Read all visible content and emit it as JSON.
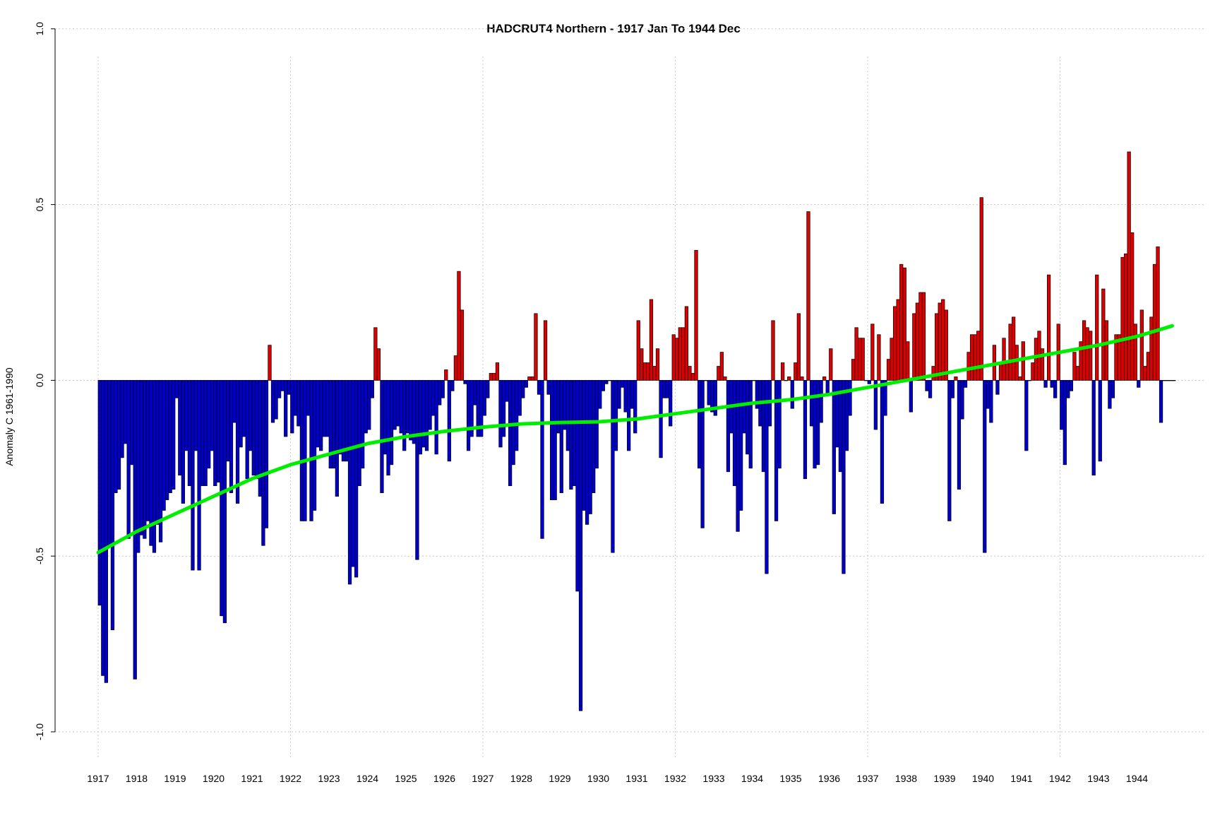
{
  "chart_data": {
    "type": "bar",
    "title": "HADCRUT4 Northern - 1917 Jan To 1944 Dec",
    "xlabel": "",
    "ylabel": "Anomaly C 1961-1990",
    "ylim": [
      -1.0,
      1.0
    ],
    "yticks": [
      "-1.0",
      "-0.5",
      "0.0",
      "0.5",
      "1.0"
    ],
    "xticks": [
      "1917",
      "1918",
      "1919",
      "1920",
      "1921",
      "1922",
      "1923",
      "1924",
      "1925",
      "1926",
      "1927",
      "1928",
      "1929",
      "1930",
      "1931",
      "1932",
      "1933",
      "1934",
      "1935",
      "1936",
      "1937",
      "1938",
      "1939",
      "1940",
      "1941",
      "1942",
      "1943",
      "1944"
    ],
    "grid": true,
    "x_start": "1917 Jan",
    "x_end": "1944 Dec",
    "colors": {
      "positive": "#dd0000",
      "negative": "#0000cc",
      "trend": "#00ee00",
      "bar_border": "#000000"
    },
    "series": [
      {
        "type": "bar",
        "monthly_anomalies": {
          "1917": [
            -0.64,
            -0.84,
            -0.86,
            -0.47,
            -0.71,
            -0.32,
            -0.31,
            -0.22,
            -0.18,
            -0.45,
            -0.24,
            -0.85
          ],
          "1918": [
            -0.49,
            -0.44,
            -0.45,
            -0.4,
            -0.47,
            -0.49,
            -0.41,
            -0.46,
            -0.37,
            -0.34,
            -0.32,
            -0.31
          ],
          "1919": [
            -0.05,
            -0.27,
            -0.35,
            -0.2,
            -0.3,
            -0.54,
            -0.2,
            -0.54,
            -0.3,
            -0.3,
            -0.25,
            -0.2
          ],
          "1920": [
            -0.3,
            -0.29,
            -0.67,
            -0.69,
            -0.23,
            -0.32,
            -0.12,
            -0.35,
            -0.19,
            -0.16,
            -0.28,
            -0.2
          ],
          "1921": [
            -0.27,
            -0.28,
            -0.33,
            -0.47,
            -0.42,
            0.1,
            -0.12,
            -0.11,
            -0.05,
            -0.03,
            -0.16,
            -0.04
          ],
          "1922": [
            -0.15,
            -0.1,
            -0.13,
            -0.4,
            -0.4,
            -0.1,
            -0.4,
            -0.37,
            -0.19,
            -0.2,
            -0.16,
            -0.16
          ],
          "1923": [
            -0.25,
            -0.25,
            -0.33,
            -0.21,
            -0.23,
            -0.23,
            -0.58,
            -0.53,
            -0.56,
            -0.3,
            -0.25,
            -0.15
          ],
          "1924": [
            -0.14,
            -0.05,
            0.15,
            0.09,
            -0.32,
            -0.21,
            -0.27,
            -0.24,
            -0.14,
            -0.13,
            -0.15,
            -0.2
          ],
          "1925": [
            -0.15,
            -0.17,
            -0.18,
            -0.51,
            -0.21,
            -0.19,
            -0.2,
            -0.14,
            -0.1,
            -0.21,
            -0.07,
            -0.05
          ],
          "1926": [
            0.03,
            -0.23,
            -0.03,
            0.07,
            0.31,
            0.2,
            -0.01,
            -0.2,
            -0.16,
            -0.07,
            -0.16,
            -0.16
          ],
          "1927": [
            -0.1,
            -0.05,
            0.02,
            0.02,
            0.05,
            -0.19,
            -0.16,
            -0.06,
            -0.3,
            -0.24,
            -0.2,
            -0.1
          ],
          "1928": [
            -0.05,
            -0.02,
            0.01,
            0.01,
            0.19,
            -0.04,
            -0.45,
            0.17,
            -0.04,
            -0.34,
            -0.34,
            -0.15
          ],
          "1929": [
            -0.32,
            -0.14,
            -0.2,
            -0.31,
            -0.3,
            -0.6,
            -0.94,
            -0.37,
            -0.41,
            -0.38,
            -0.32,
            -0.25
          ],
          "1930": [
            -0.08,
            -0.03,
            -0.01,
            0.0,
            -0.49,
            -0.2,
            -0.08,
            -0.02,
            -0.09,
            -0.2,
            -0.08,
            -0.15
          ],
          "1931": [
            0.17,
            0.09,
            0.05,
            0.05,
            0.23,
            0.04,
            0.09,
            -0.22,
            -0.05,
            -0.05,
            -0.13,
            0.13
          ],
          "1932": [
            0.12,
            0.15,
            0.15,
            0.21,
            0.04,
            0.02,
            0.37,
            -0.25,
            -0.42,
            0.0,
            -0.07,
            -0.09
          ],
          "1933": [
            -0.1,
            0.04,
            0.08,
            0.01,
            -0.26,
            -0.15,
            -0.3,
            -0.43,
            -0.37,
            -0.15,
            -0.21,
            -0.25
          ],
          "1934": [
            0.0,
            -0.08,
            -0.13,
            -0.26,
            -0.55,
            -0.13,
            0.17,
            -0.4,
            -0.25,
            0.05,
            0.0,
            0.01
          ],
          "1935": [
            -0.08,
            0.05,
            0.19,
            0.01,
            -0.28,
            0.48,
            -0.13,
            -0.25,
            -0.24,
            -0.12,
            0.01,
            -0.04
          ],
          "1936": [
            0.09,
            -0.38,
            -0.19,
            -0.26,
            -0.55,
            -0.2,
            -0.1,
            0.06,
            0.15,
            0.12,
            0.12,
            0.0
          ],
          "1937": [
            -0.01,
            0.16,
            -0.14,
            0.13,
            -0.35,
            -0.1,
            0.06,
            0.12,
            0.21,
            0.23,
            0.33,
            0.32
          ],
          "1938": [
            0.11,
            -0.09,
            0.19,
            0.22,
            0.25,
            0.25,
            -0.03,
            -0.05,
            0.04,
            0.19,
            0.22,
            0.23
          ],
          "1939": [
            0.2,
            -0.4,
            -0.05,
            0.01,
            -0.31,
            -0.11,
            -0.02,
            0.08,
            0.13,
            0.13,
            0.14,
            0.52
          ],
          "1940": [
            -0.49,
            -0.08,
            -0.12,
            0.1,
            -0.04,
            0.05,
            0.12,
            0.05,
            0.16,
            0.18,
            0.1,
            0.01
          ],
          "1941": [
            0.11,
            -0.2,
            0.0,
            0.05,
            0.12,
            0.14,
            0.09,
            -0.02,
            0.3,
            -0.02,
            -0.05,
            0.16
          ],
          "1942": [
            -0.14,
            -0.24,
            -0.05,
            -0.03,
            0.08,
            0.04,
            0.11,
            0.17,
            0.15,
            0.14,
            -0.27,
            0.3
          ],
          "1943": [
            -0.23,
            0.26,
            0.17,
            -0.08,
            -0.05,
            0.13,
            0.13,
            0.35,
            0.36,
            0.65,
            0.42,
            0.16
          ],
          "1944": [
            -0.02,
            0.2,
            0.04,
            0.08,
            0.18,
            0.33,
            0.38,
            -0.12,
            0.0,
            0.0,
            0.0,
            0.0
          ]
        }
      },
      {
        "type": "line",
        "x": [
          "1917 Jan",
          "1918 Jan",
          "1919 Jan",
          "1920 Jan",
          "1921 Jan",
          "1922 Jan",
          "1923 Jan",
          "1924 Jan",
          "1925 Jan",
          "1926 Jan",
          "1927 Jan",
          "1928 Jan",
          "1929 Jan",
          "1930 Jan",
          "1931 Jan",
          "1932 Jan",
          "1933 Jan",
          "1934 Jan",
          "1935 Jan",
          "1936 Jan",
          "1937 Jan",
          "1938 Jan",
          "1939 Jan",
          "1940 Jan",
          "1941 Jan",
          "1942 Jan",
          "1943 Jan",
          "1944 Jan",
          "1944 Dec"
        ],
        "values": [
          -0.49,
          -0.43,
          -0.38,
          -0.33,
          -0.28,
          -0.24,
          -0.21,
          -0.18,
          -0.16,
          -0.145,
          -0.133,
          -0.124,
          -0.12,
          -0.118,
          -0.11,
          -0.095,
          -0.08,
          -0.065,
          -0.055,
          -0.04,
          -0.02,
          0.0,
          0.02,
          0.04,
          0.06,
          0.08,
          0.1,
          0.125,
          0.155
        ]
      }
    ]
  }
}
